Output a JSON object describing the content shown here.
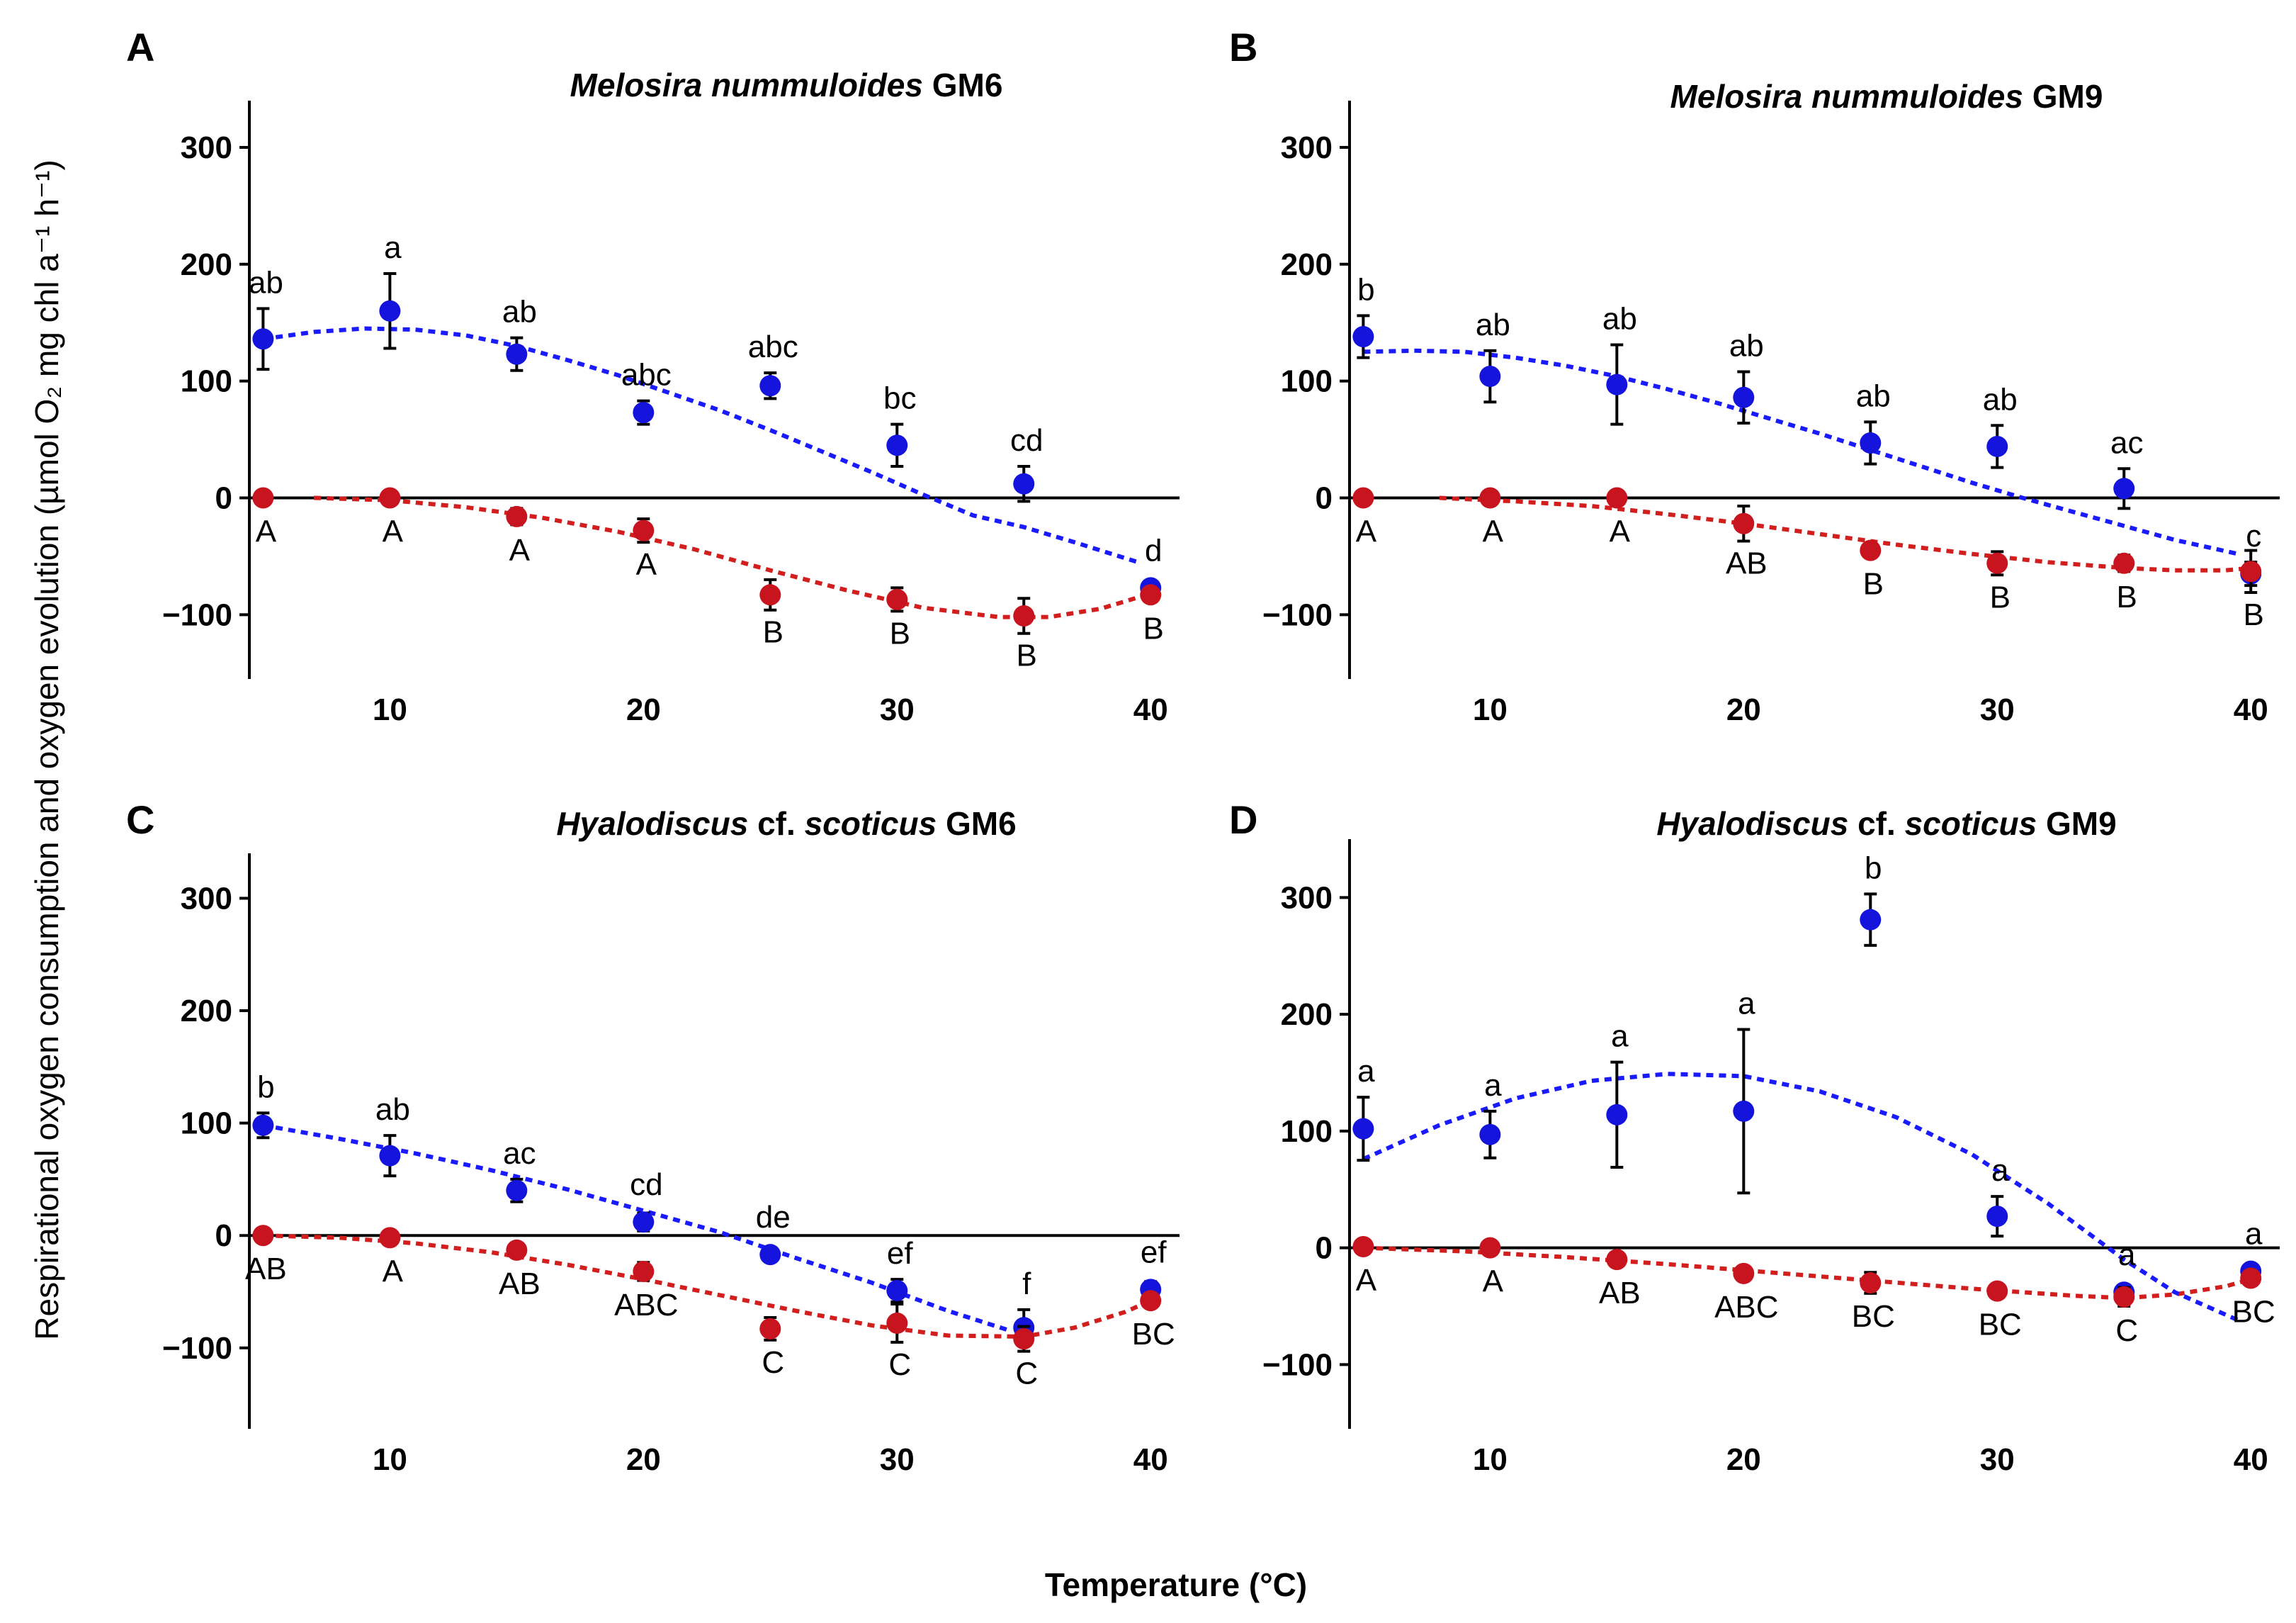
{
  "figure": {
    "ylabel": "Respirational oxygen consumption and oxygen evolution (µmol O₂ mg chl a⁻¹ h⁻¹)",
    "xlabel": "Temperature (°C)"
  },
  "colors": {
    "evolution": "#1414dc",
    "consumption": "#c8141e",
    "fit_evolution": "#1a1aff",
    "fit_consumption": "#d31e1e",
    "axis": "#000000"
  },
  "chart_data": [
    {
      "panel": "A",
      "type": "scatter",
      "title_species": "Melosira nummuloides",
      "title_strain": "GM6",
      "xlabel": "Temperature (°C)",
      "xlim": [
        2,
        41
      ],
      "ylim": [
        -155,
        340
      ],
      "xticks": [
        10,
        20,
        30,
        40
      ],
      "yticks": [
        300,
        200,
        100,
        0,
        -100
      ],
      "ytick_labels": [
        "300",
        "200",
        "100",
        "0",
        "−100"
      ],
      "x": [
        5,
        10,
        15,
        20,
        25,
        30,
        35,
        40
      ],
      "series": [
        {
          "name": "oxygen evolution",
          "color": "#1414dc",
          "values": [
            136,
            160,
            123,
            73,
            96,
            45,
            12,
            -77
          ],
          "errors": [
            26,
            32,
            14,
            10,
            11,
            18,
            15,
            5
          ],
          "labels": [
            "ab",
            "a",
            "ab",
            "abc",
            "abc",
            "bc",
            "cd",
            "d"
          ]
        },
        {
          "name": "respirational oxygen consumption",
          "color": "#c8141e",
          "values": [
            0,
            0,
            -16,
            -28,
            -83,
            -87,
            -101,
            -83
          ],
          "errors": [
            3,
            3,
            7,
            10,
            13,
            10,
            15,
            5
          ],
          "labels": [
            "A",
            "A",
            "A",
            "A",
            "B",
            "B",
            "B",
            "B"
          ]
        }
      ],
      "fit_evolution": {
        "x": [
          5,
          7,
          9,
          11,
          13,
          15,
          17,
          19,
          21,
          23,
          25,
          27,
          29,
          31,
          33,
          35,
          37,
          39.5
        ],
        "y": [
          136,
          142,
          145,
          144,
          139,
          130,
          118,
          105,
          90,
          75,
          58,
          40,
          22,
          3,
          -15,
          -25,
          -38,
          -55
        ]
      },
      "fit_consumption": {
        "x": [
          7,
          10,
          13,
          16,
          19,
          22,
          25,
          28,
          31,
          34,
          36,
          38,
          40
        ],
        "y": [
          0,
          -2,
          -8,
          -17,
          -29,
          -44,
          -62,
          -79,
          -94,
          -102,
          -102,
          -95,
          -82
        ]
      }
    },
    {
      "panel": "B",
      "type": "scatter",
      "title_species": "Melosira nummuloides",
      "title_strain": "GM9",
      "xlabel": "Temperature (°C)",
      "xlim": [
        2,
        41
      ],
      "ylim": [
        -155,
        340
      ],
      "xticks": [
        10,
        20,
        30,
        40
      ],
      "yticks": [
        300,
        200,
        100,
        0,
        -100
      ],
      "ytick_labels": [
        "300",
        "200",
        "100",
        "0",
        "−100"
      ],
      "x": [
        5,
        10,
        15,
        20,
        25,
        30,
        35,
        40
      ],
      "series": [
        {
          "name": "oxygen evolution",
          "color": "#1414dc",
          "values": [
            138,
            104,
            97,
            86,
            47,
            44,
            8,
            -65
          ],
          "errors": [
            18,
            22,
            34,
            22,
            18,
            18,
            17,
            10
          ],
          "labels": [
            "b",
            "ab",
            "ab",
            "ab",
            "ab",
            "ab",
            "ac",
            "c"
          ]
        },
        {
          "name": "respirational oxygen consumption",
          "color": "#c8141e",
          "values": [
            0,
            0,
            0,
            -22,
            -45,
            -56,
            -56,
            -63
          ],
          "errors": [
            3,
            3,
            3,
            15,
            6,
            10,
            7,
            18
          ],
          "labels": [
            "A",
            "A",
            "A",
            "AB",
            "B",
            "B",
            "B",
            "B"
          ]
        }
      ],
      "fit_evolution": {
        "x": [
          5,
          7,
          9,
          11,
          13,
          15,
          17,
          19,
          21,
          23,
          25,
          27,
          29,
          31,
          33,
          35,
          37,
          39.5
        ],
        "y": [
          125,
          126,
          125,
          120,
          113,
          104,
          93,
          81,
          68,
          55,
          41,
          27,
          13,
          0,
          -12,
          -24,
          -36,
          -48
        ]
      },
      "fit_consumption": {
        "x": [
          8,
          11,
          14,
          17,
          20,
          23,
          26,
          29,
          32,
          35,
          37,
          39,
          40
        ],
        "y": [
          0,
          -3,
          -7,
          -14,
          -22,
          -31,
          -40,
          -48,
          -55,
          -60,
          -62,
          -62,
          -60
        ]
      }
    },
    {
      "panel": "C",
      "type": "scatter",
      "title_species": "Hyalodiscus",
      "title_mid": "cf.",
      "title_species2": "scoticus",
      "title_strain": "GM6",
      "xlabel": "Temperature (°C)",
      "xlim": [
        2,
        41
      ],
      "ylim": [
        -172,
        340
      ],
      "xticks": [
        10,
        20,
        30,
        40
      ],
      "yticks": [
        300,
        200,
        100,
        0,
        -100
      ],
      "ytick_labels": [
        "300",
        "200",
        "100",
        "0",
        "−100"
      ],
      "x": [
        5,
        10,
        15,
        20,
        25,
        30,
        35,
        40
      ],
      "series": [
        {
          "name": "oxygen evolution",
          "color": "#1414dc",
          "values": [
            98,
            71,
            40,
            12,
            -17,
            -49,
            -82,
            -48
          ],
          "errors": [
            11,
            18,
            10,
            8,
            5,
            10,
            16,
            7
          ],
          "labels": [
            "b",
            "ab",
            "ac",
            "cd",
            "de",
            "ef",
            "f",
            "ef"
          ]
        },
        {
          "name": "respirational oxygen consumption",
          "color": "#c8141e",
          "values": [
            0,
            -2,
            -13,
            -32,
            -83,
            -78,
            -92,
            -58
          ],
          "errors": [
            3,
            3,
            5,
            8,
            10,
            17,
            11,
            5
          ],
          "labels": [
            "AB",
            "A",
            "AB",
            "ABC",
            "C",
            "C",
            "C",
            "BC"
          ]
        }
      ],
      "fit_evolution": {
        "x": [
          5,
          8,
          11,
          14,
          17,
          20,
          23,
          26,
          29,
          32,
          34.5
        ],
        "y": [
          98,
          86,
          73,
          58,
          41,
          22,
          3,
          -20,
          -42,
          -67,
          -85
        ]
      },
      "fit_consumption": {
        "x": [
          5,
          8,
          11,
          14,
          17,
          20,
          23,
          26,
          29,
          32,
          35,
          37,
          39,
          40
        ],
        "y": [
          0,
          -2,
          -7,
          -15,
          -26,
          -39,
          -53,
          -67,
          -80,
          -89,
          -90,
          -82,
          -68,
          -58
        ]
      }
    },
    {
      "panel": "D",
      "type": "scatter",
      "title_species": "Hyalodiscus",
      "title_mid": "cf.",
      "title_species2": "scoticus",
      "title_strain": "GM9",
      "xlabel": "Temperature (°C)",
      "xlim": [
        2,
        41
      ],
      "ylim": [
        -155,
        350
      ],
      "xticks": [
        10,
        20,
        30,
        40
      ],
      "yticks": [
        300,
        200,
        100,
        0,
        -100
      ],
      "ytick_labels": [
        "300",
        "200",
        "100",
        "0",
        "−100"
      ],
      "x": [
        5,
        10,
        15,
        20,
        25,
        30,
        35,
        40
      ],
      "series": [
        {
          "name": "oxygen evolution",
          "color": "#1414dc",
          "values": [
            102,
            97,
            114,
            117,
            281,
            27,
            -38,
            -20
          ],
          "errors": [
            27,
            20,
            45,
            70,
            22,
            17,
            5,
            5
          ],
          "labels": [
            "a",
            "a",
            "a",
            "a",
            "b",
            "a",
            "a",
            "a"
          ]
        },
        {
          "name": "respirational oxygen consumption",
          "color": "#c8141e",
          "values": [
            1,
            0,
            -10,
            -22,
            -30,
            -37,
            -42,
            -26
          ],
          "errors": [
            3,
            3,
            5,
            4,
            9,
            6,
            8,
            5
          ],
          "labels": [
            "A",
            "A",
            "AB",
            "ABC",
            "BC",
            "BC",
            "C",
            "BC"
          ]
        }
      ],
      "fit_evolution": {
        "x": [
          5,
          8,
          11,
          14,
          17,
          20,
          23,
          26,
          29,
          32,
          35,
          37,
          39.5
        ],
        "y": [
          76,
          105,
          128,
          143,
          149,
          147,
          134,
          112,
          80,
          38,
          -10,
          -38,
          -62
        ]
      },
      "fit_consumption": {
        "x": [
          5,
          9,
          13,
          17,
          21,
          25,
          29,
          33,
          35,
          37,
          39,
          40
        ],
        "y": [
          0,
          -3,
          -8,
          -14,
          -21,
          -28,
          -35,
          -41,
          -43,
          -40,
          -33,
          -27
        ]
      }
    }
  ]
}
